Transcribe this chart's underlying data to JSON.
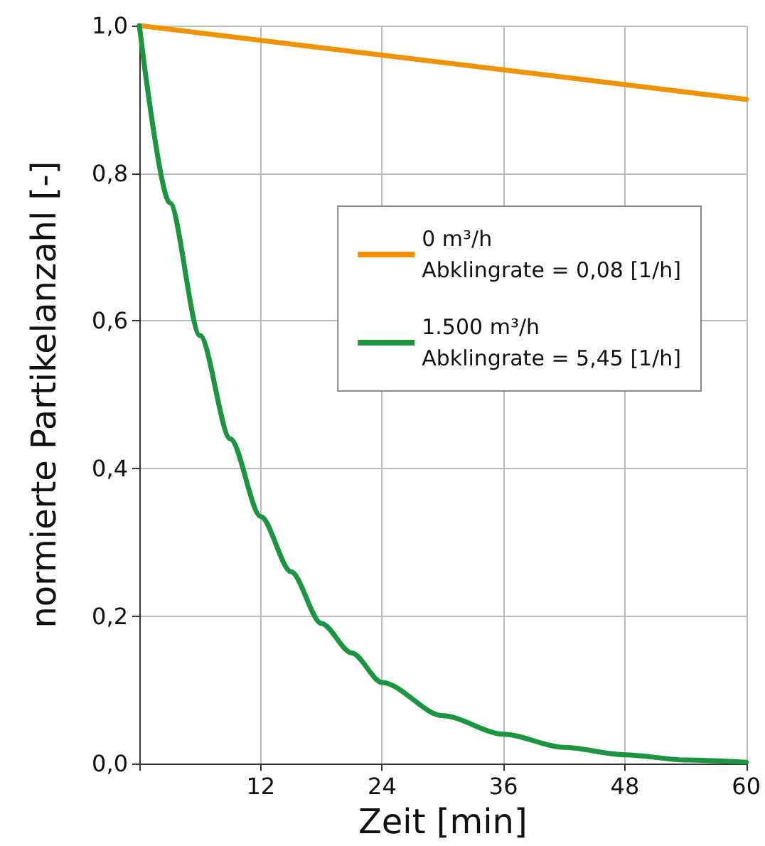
{
  "chart_data": {
    "type": "line",
    "xlabel": "Zeit [min]",
    "ylabel": "normierte Partikelanzahl [-]",
    "xlim": [
      0,
      60
    ],
    "xticks": [
      {
        "value": 0,
        "label": null
      },
      12,
      24,
      36,
      48,
      60
    ],
    "ylim": [
      0,
      1
    ],
    "yticks": [
      {
        "value": 0,
        "label": "0,0"
      },
      {
        "value": 0.2,
        "label": "0,2"
      },
      {
        "value": 0.4,
        "label": "0,4"
      },
      {
        "value": 0.6,
        "label": "0,6"
      },
      {
        "value": 0.8,
        "label": "0,8"
      },
      {
        "value": 1,
        "label": "1,0"
      }
    ],
    "grid": true,
    "legend": "right",
    "marker": "none",
    "line_style": "solid",
    "series": [
      {
        "name": "0 m³/h\nAbklingrate = 0,08 [1/h]",
        "color": "#f39200",
        "x": [
          0,
          60
        ],
        "values": [
          1.0,
          0.9
        ]
      },
      {
        "name": "1.500 m³/h\nAbklingrate = 5,45 [1/h]",
        "color": "#1a9641",
        "x": [
          0,
          3,
          6,
          9,
          12,
          15,
          18,
          21,
          24,
          30,
          36,
          42,
          48,
          54,
          60
        ],
        "values": [
          1.0,
          0.76,
          0.58,
          0.44,
          0.335,
          0.26,
          0.19,
          0.15,
          0.11,
          0.065,
          0.04,
          0.022,
          0.012,
          0.005,
          0.002
        ]
      }
    ]
  }
}
